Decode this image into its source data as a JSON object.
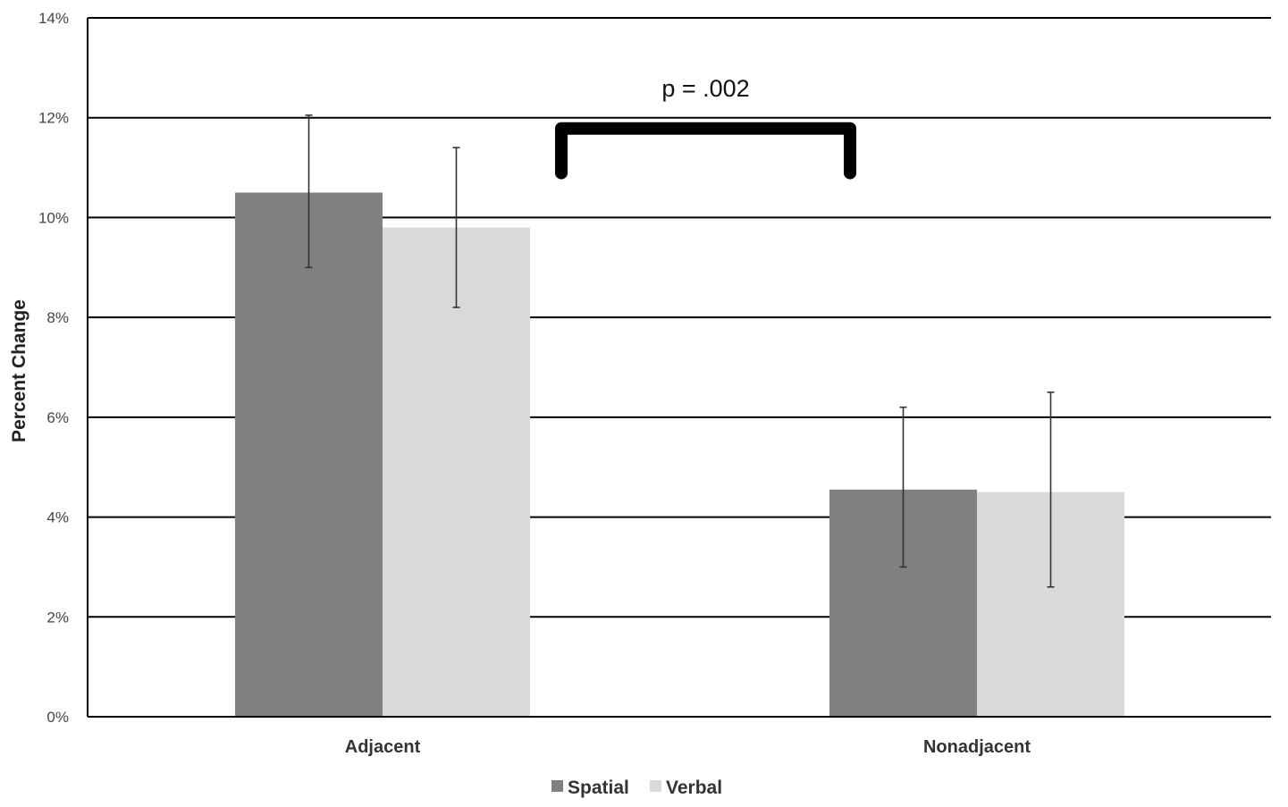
{
  "chart_data": {
    "type": "bar",
    "title": "",
    "xlabel": "",
    "ylabel": "Percent Change",
    "ylim": [
      0,
      14
    ],
    "yticks": [
      "0%",
      "2%",
      "4%",
      "6%",
      "8%",
      "10%",
      "12%",
      "14%"
    ],
    "yticks_values": [
      0,
      2,
      4,
      6,
      8,
      10,
      12,
      14
    ],
    "grid": true,
    "legend_position": "bottom-center",
    "categories": [
      "Adjacent",
      "Nonadjacent"
    ],
    "series": [
      {
        "name": "Spatial",
        "color": "#808080",
        "values": [
          10.5,
          4.55
        ],
        "error_low": [
          9.0,
          3.0
        ],
        "error_high": [
          12.05,
          6.2
        ]
      },
      {
        "name": "Verbal",
        "color": "#d9d9d9",
        "values": [
          9.8,
          4.5
        ],
        "error_low": [
          8.2,
          2.6
        ],
        "error_high": [
          11.4,
          6.5
        ]
      }
    ],
    "annotations": [
      {
        "text": "p = .002",
        "type": "significance-bracket",
        "y_top": 12.0,
        "y_bottom": 11.0
      }
    ]
  }
}
